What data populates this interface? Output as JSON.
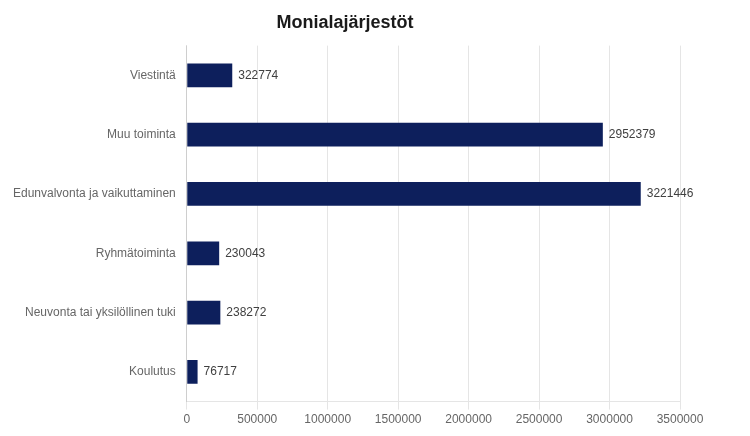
{
  "chart_data": {
    "type": "bar",
    "orientation": "horizontal",
    "title": "Monialajärjestöt",
    "categories": [
      "Viestintä",
      "Muu toiminta",
      "Edunvalvonta ja vaikuttaminen",
      "Ryhmätoiminta",
      "Neuvonta tai yksilöllinen tuki",
      "Koulutus"
    ],
    "values": [
      322774,
      2952379,
      3221446,
      230043,
      238272,
      76717
    ],
    "color": "#0d1f5c",
    "xlim": [
      0,
      3500000
    ],
    "xticks": [
      0,
      500000,
      1000000,
      1500000,
      2000000,
      2500000,
      3000000,
      3500000
    ],
    "grid": true,
    "data_labels": true
  }
}
